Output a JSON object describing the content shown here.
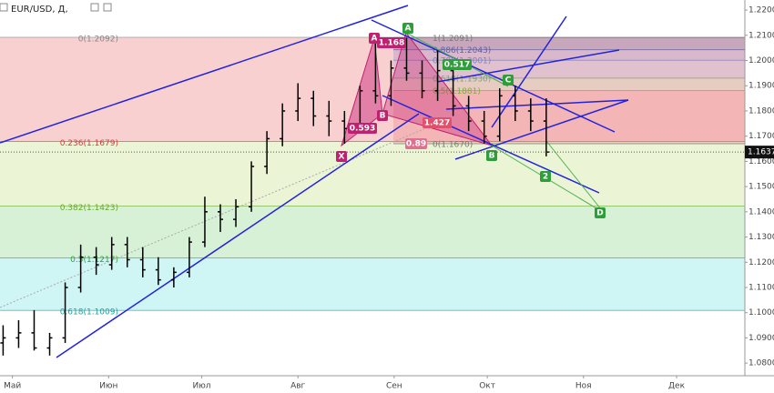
{
  "chart_data": {
    "type": "ohlc",
    "title": "EUR/USD, Д,",
    "color": "#000000",
    "x": [
      -3,
      2,
      7,
      12,
      17,
      22,
      27,
      32,
      37,
      42,
      47,
      52,
      57,
      62,
      67,
      72,
      77,
      82,
      87,
      92,
      97,
      102,
      107,
      112,
      117,
      122,
      127,
      132,
      137,
      142,
      147,
      152,
      157,
      162,
      167,
      172
    ],
    "open": [
      1.088,
      1.09,
      1.092,
      1.086,
      1.09,
      1.11,
      1.122,
      1.119,
      1.127,
      1.121,
      1.117,
      1.113,
      1.116,
      1.128,
      1.14,
      1.137,
      1.142,
      1.158,
      1.169,
      1.18,
      1.185,
      1.178,
      1.176,
      1.173,
      1.188,
      1.186,
      1.197,
      1.195,
      1.188,
      1.196,
      1.182,
      1.176,
      1.17,
      1.186,
      1.18,
      1.176
    ],
    "high": [
      1.095,
      1.097,
      1.101,
      1.092,
      1.112,
      1.127,
      1.126,
      1.13,
      1.13,
      1.126,
      1.122,
      1.118,
      1.13,
      1.146,
      1.143,
      1.145,
      1.16,
      1.172,
      1.183,
      1.191,
      1.188,
      1.184,
      1.18,
      1.19,
      1.207,
      1.2,
      1.209,
      1.2,
      1.204,
      1.199,
      1.186,
      1.18,
      1.189,
      1.19,
      1.185,
      1.185
    ],
    "low": [
      1.083,
      1.086,
      1.085,
      1.083,
      1.088,
      1.108,
      1.115,
      1.117,
      1.118,
      1.114,
      1.111,
      1.11,
      1.114,
      1.126,
      1.132,
      1.134,
      1.14,
      1.155,
      1.166,
      1.176,
      1.174,
      1.17,
      1.167,
      1.171,
      1.183,
      1.182,
      1.192,
      1.185,
      1.184,
      1.178,
      1.172,
      1.167,
      1.168,
      1.176,
      1.172,
      1.162
    ],
    "close": [
      1.09,
      1.092,
      1.086,
      1.09,
      1.11,
      1.122,
      1.119,
      1.127,
      1.121,
      1.117,
      1.113,
      1.116,
      1.128,
      1.14,
      1.137,
      1.142,
      1.158,
      1.169,
      1.18,
      1.185,
      1.178,
      1.176,
      1.173,
      1.188,
      1.186,
      1.197,
      1.195,
      1.188,
      1.196,
      1.182,
      1.176,
      1.17,
      1.186,
      1.18,
      1.176,
      1.1637
    ],
    "xlim": [
      -4,
      236
    ],
    "xticks": [
      {
        "value": 0,
        "label": "Май"
      },
      {
        "value": 31,
        "label": "Июн"
      },
      {
        "value": 61,
        "label": "Июл"
      },
      {
        "value": 92,
        "label": "Авг"
      },
      {
        "value": 123,
        "label": "Сен"
      },
      {
        "value": 153,
        "label": "Окт"
      },
      {
        "value": 184,
        "label": "Ноя"
      },
      {
        "value": 214,
        "label": "Дек"
      }
    ],
    "ylim": [
      1.075,
      1.224
    ],
    "yticks": [
      {
        "value": 1.08,
        "label": "1.0800"
      },
      {
        "value": 1.09,
        "label": "1.0900"
      },
      {
        "value": 1.1,
        "label": "1.1000"
      },
      {
        "value": 1.11,
        "label": "1.1100"
      },
      {
        "value": 1.12,
        "label": "1.1200"
      },
      {
        "value": 1.13,
        "label": "1.1300"
      },
      {
        "value": 1.14,
        "label": "1.1400"
      },
      {
        "value": 1.15,
        "label": "1.1500"
      },
      {
        "value": 1.16,
        "label": "1.1600"
      },
      {
        "value": 1.17,
        "label": "1.1700"
      },
      {
        "value": 1.18,
        "label": "1.1800"
      },
      {
        "value": 1.19,
        "label": "1.1900"
      },
      {
        "value": 1.2,
        "label": "1.2000"
      },
      {
        "value": 1.21,
        "label": "1.2100"
      },
      {
        "value": 1.22,
        "label": "1.2200"
      }
    ],
    "last_price": 1.1637,
    "fib_left": [
      {
        "value": 1.2092,
        "label": "0(1.2092)",
        "color": "#888888"
      },
      {
        "value": 1.1679,
        "label": "0.236(1.1679)",
        "color": "#d04040"
      },
      {
        "value": 1.1423,
        "label": "0.382(1.1423)",
        "color": "#6aa830"
      },
      {
        "value": 1.1217,
        "label": "0.5(1.1217)",
        "color": "#3aa040"
      },
      {
        "value": 1.1009,
        "label": "0.618(1.1009)",
        "color": "#20a0a0"
      }
    ],
    "fib_right": [
      {
        "value": 1.2091,
        "label": "1(1.2091)",
        "color": "#777777"
      },
      {
        "value": 1.2043,
        "label": "0.886(1.2043)",
        "color": "#6060a0"
      },
      {
        "value": 1.2001,
        "label": "0.786(1.2001)",
        "color": "#8080c0"
      },
      {
        "value": 1.193,
        "label": "0.618(1.1930)",
        "color": "#80a080"
      },
      {
        "value": 1.1881,
        "label": "0.5(1.1881)",
        "color": "#80b040"
      },
      {
        "value": 1.167,
        "label": "0(1.1670)",
        "color": "#777777"
      }
    ],
    "pattern_labels": {
      "magenta": [
        "X",
        "A",
        "B"
      ],
      "green": [
        "A",
        "B",
        "C",
        "D",
        "2"
      ]
    },
    "ratios": [
      1.168,
      0.593,
      0.517,
      1.427,
      0.89
    ]
  }
}
